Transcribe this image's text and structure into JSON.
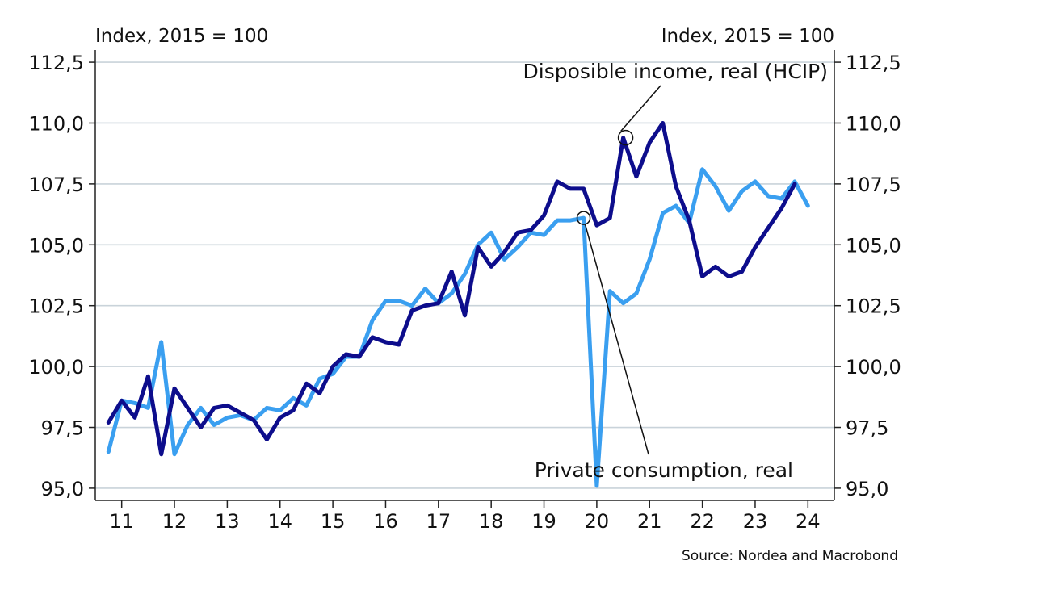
{
  "chart_data": {
    "type": "line",
    "left_axis_unit": "Index, 2015 = 100",
    "right_axis_unit": "Index, 2015 = 100",
    "source": "Source: Nordea and Macrobond",
    "ylim": [
      94.5,
      113.0
    ],
    "yticks": [
      "112,5",
      "110,0",
      "107,5",
      "105,0",
      "102,5",
      "100,0",
      "97,5",
      "95,0"
    ],
    "ytick_values": [
      112.5,
      110.0,
      107.5,
      105.0,
      102.5,
      100.0,
      97.5,
      95.0
    ],
    "xlim": [
      2010.5,
      2024.5
    ],
    "year_boundaries": [
      2011,
      2012,
      2013,
      2014,
      2015,
      2016,
      2017,
      2018,
      2019,
      2020,
      2021,
      2022,
      2023,
      2024
    ],
    "xtick_labels": [
      "11",
      "12",
      "13",
      "14",
      "15",
      "16",
      "17",
      "18",
      "19",
      "20",
      "21",
      "22",
      "23",
      "24"
    ],
    "xtick_positions": [
      2011.0,
      2012.0,
      2013.0,
      2014.0,
      2015.0,
      2016.0,
      2017.0,
      2018.0,
      2019.0,
      2020.0,
      2021.0,
      2022.0,
      2023.0,
      2024.0
    ],
    "grid": true,
    "colors": {
      "income": "#0d0d8c",
      "consumption": "#3a9ff0",
      "grid": "#c9d3da",
      "axis": "#222222"
    },
    "annotations": [
      {
        "text": "Disposible income, real (HCIP)",
        "series": 0,
        "point_index": 39
      },
      {
        "text": "Private consumption, real",
        "series": 1,
        "point_index": 36
      }
    ],
    "series": [
      {
        "values": [
          97.7,
          98.6,
          97.9,
          99.6,
          96.4,
          99.1,
          98.3,
          97.5,
          98.3,
          98.4,
          98.1,
          97.8,
          97.0,
          97.9,
          98.2,
          99.3,
          98.9,
          100.0,
          100.5,
          100.4,
          101.2,
          101.0,
          100.9,
          102.3,
          102.5,
          102.6,
          103.9,
          102.1,
          104.9,
          104.1,
          104.7,
          105.5,
          105.6,
          106.2,
          107.6,
          107.3,
          107.3,
          105.8,
          106.1,
          109.4,
          107.8,
          109.2,
          110.0,
          107.4,
          106.0,
          103.7,
          104.1,
          103.7,
          103.9,
          104.9,
          105.7,
          106.5,
          107.5
        ]
      },
      {
        "values": [
          96.5,
          98.6,
          98.5,
          98.3,
          101.0,
          96.4,
          97.6,
          98.3,
          97.6,
          97.9,
          98.0,
          97.8,
          98.3,
          98.2,
          98.7,
          98.4,
          99.5,
          99.7,
          100.4,
          100.4,
          101.9,
          102.7,
          102.7,
          102.5,
          103.2,
          102.6,
          103.0,
          103.8,
          105.0,
          105.5,
          104.4,
          104.9,
          105.5,
          105.4,
          106.0,
          106.0,
          106.1,
          95.1,
          103.1,
          102.6,
          103.0,
          104.4,
          106.3,
          106.6,
          105.9,
          108.1,
          107.4,
          106.4,
          107.2,
          107.6,
          107.0,
          106.9,
          107.6,
          106.6
        ]
      }
    ]
  }
}
